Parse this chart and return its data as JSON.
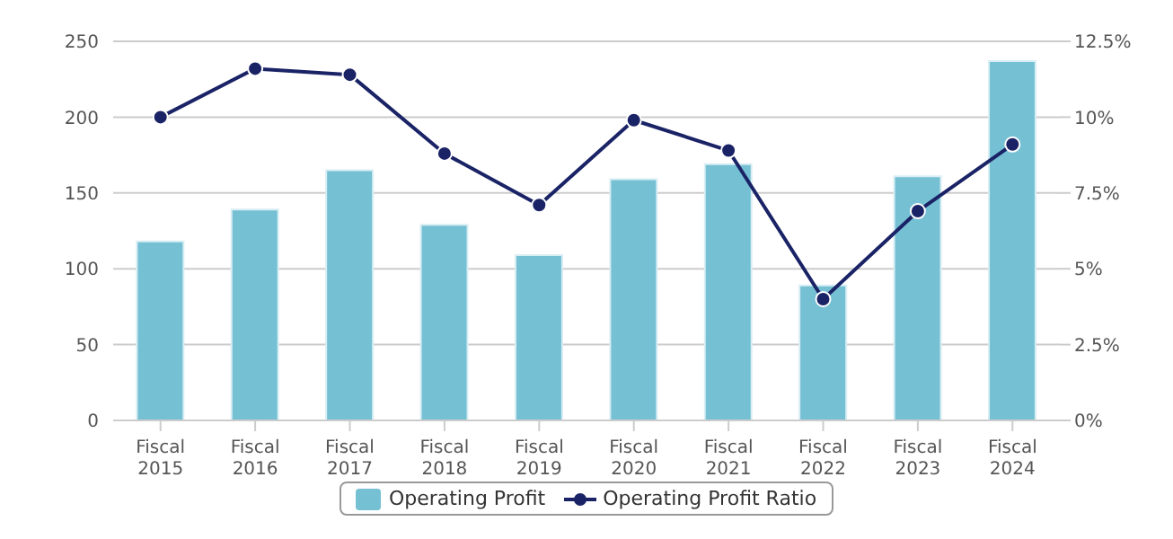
{
  "chart_data": {
    "type": "bar",
    "categories": [
      "Fiscal 2015",
      "Fiscal 2016",
      "Fiscal 2017",
      "Fiscal 2018",
      "Fiscal 2019",
      "Fiscal 2020",
      "Fiscal 2021",
      "Fiscal 2022",
      "Fiscal 2023",
      "Fiscal 2024"
    ],
    "series": [
      {
        "name": "Operating Profit",
        "color": "#76c0d4",
        "values": [
          118,
          139,
          165,
          129,
          109,
          159,
          169,
          89,
          161,
          237
        ]
      },
      {
        "name": "Operating Profit Ratio",
        "type": "line",
        "axis": "y2",
        "color": "#1a2366",
        "marker": "circle",
        "values": [
          10.0,
          11.6,
          11.4,
          8.8,
          7.1,
          9.9,
          8.9,
          4.0,
          6.9,
          9.1
        ]
      }
    ],
    "ylim": [
      0,
      250
    ],
    "yticks": [
      0,
      50,
      100,
      150,
      200,
      250
    ],
    "y2lim": [
      0,
      12.5
    ],
    "y2ticks": [
      {
        "value": 0,
        "label": "0%"
      },
      {
        "value": 2.5,
        "label": "2.5%"
      },
      {
        "value": 5,
        "label": "5%"
      },
      {
        "value": 7.5,
        "label": "7.5%"
      },
      {
        "value": 10,
        "label": "10%"
      },
      {
        "value": 12.5,
        "label": "12.5%"
      }
    ],
    "grid": "y",
    "legend": "bottom"
  }
}
